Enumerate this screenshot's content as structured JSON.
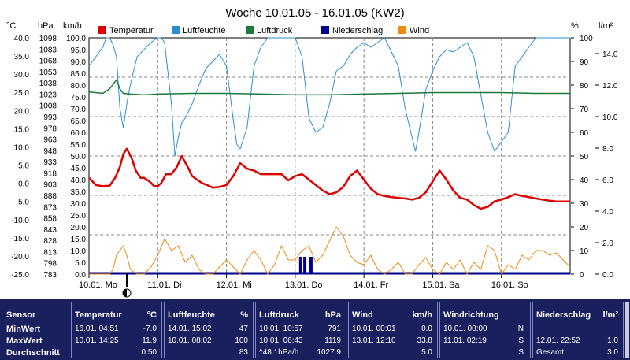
{
  "chart_data": {
    "type": "line",
    "title": "Woche 10.01.05 - 16.01.05 (KW2)",
    "legend_placement": "top",
    "grid": true,
    "x_ticks": [
      "10.01. Mo",
      "11.01. Di",
      "12.01. Mi",
      "13.01. Do",
      "14.01. Fr",
      "15.01. Sa",
      "16.01. So"
    ],
    "axes": {
      "temp": {
        "unit": "°C",
        "range": [
          -25,
          40
        ],
        "ticks": [
          "40.0",
          "35.0",
          "30.0",
          "25.0",
          "20.0",
          "15.0",
          "10.0",
          "5.0",
          "0.0",
          "-5.0",
          "-10.0",
          "-15.0",
          "-20.0",
          "-25.0"
        ]
      },
      "pressure": {
        "unit": "hPa",
        "range": [
          783,
          1098
        ],
        "ticks": [
          "1098",
          "1083",
          "1068",
          "1053",
          "1038",
          "1023",
          "1008",
          "993",
          "978",
          "963",
          "948",
          "933",
          "918",
          "903",
          "888",
          "873",
          "858",
          "843",
          "828",
          "813",
          "798",
          "783"
        ]
      },
      "wind": {
        "unit": "km/h",
        "range": [
          0,
          100
        ],
        "ticks": [
          "100.0",
          "95.0",
          "90.0",
          "85.0",
          "80.0",
          "75.0",
          "70.0",
          "65.0",
          "60.0",
          "55.0",
          "50.0",
          "45.0",
          "40.0",
          "35.0",
          "30.0",
          "25.0",
          "20.0",
          "15.0",
          "10.0",
          "5.0",
          "0.0"
        ]
      },
      "humidity": {
        "unit": "%",
        "range": [
          0,
          100
        ],
        "ticks": [
          "100",
          "90",
          "80",
          "70",
          "60",
          "50",
          "40",
          "30",
          "20",
          "10",
          "0"
        ]
      },
      "rain": {
        "unit": "l/m²",
        "range": [
          0,
          15
        ],
        "ticks": [
          "14.0",
          "12.0",
          "10.0",
          "8.0",
          "6.0",
          "4.0",
          "2.0",
          "0.0"
        ]
      }
    },
    "series": [
      {
        "name": "Temperatur",
        "color": "#dd0000",
        "axis": "temp",
        "x": [
          0,
          0.05,
          0.1,
          0.2,
          0.3,
          0.38,
          0.45,
          0.5,
          0.55,
          0.62,
          0.68,
          0.75,
          0.8,
          0.88,
          0.95,
          1.0,
          1.05,
          1.12,
          1.2,
          1.28,
          1.35,
          1.45,
          1.5,
          1.57,
          1.65,
          1.72,
          1.8,
          1.9,
          2.0,
          2.1,
          2.2,
          2.3,
          2.4,
          2.5,
          2.6,
          2.7,
          2.8,
          2.9,
          3.0,
          3.1,
          3.2,
          3.3,
          3.4,
          3.5,
          3.6,
          3.7,
          3.8,
          3.9,
          4.0,
          4.1,
          4.2,
          4.3,
          4.4,
          4.5,
          4.6,
          4.7,
          4.8,
          4.9,
          5.0,
          5.1,
          5.2,
          5.3,
          5.4,
          5.5,
          5.6,
          5.7,
          5.8,
          5.9,
          6.0,
          6.1,
          6.2,
          6.3,
          6.4,
          6.5,
          6.6,
          6.7,
          6.8,
          6.9,
          7.0
        ],
        "y": [
          1.5,
          0.5,
          -0.5,
          -0.8,
          -0.7,
          1.5,
          4.5,
          8.0,
          9.5,
          7.0,
          3.5,
          1.5,
          1.5,
          0.5,
          -0.8,
          -0.8,
          0.0,
          2.5,
          2.5,
          4.5,
          7.5,
          4.0,
          2.0,
          1.0,
          0.0,
          -0.5,
          -1.2,
          -1.0,
          -0.5,
          2.0,
          5.5,
          4.0,
          3.5,
          2.5,
          2.5,
          2.5,
          2.5,
          0.8,
          2.0,
          2.5,
          1.0,
          -0.5,
          -2.0,
          -3.0,
          -2.5,
          -1.0,
          2.0,
          3.5,
          1.0,
          -1.5,
          -3.0,
          -3.5,
          -3.8,
          -4.0,
          -4.2,
          -4.5,
          -4.0,
          -2.5,
          0.5,
          3.5,
          1.0,
          -2.0,
          -4.0,
          -4.5,
          -6.0,
          -7.0,
          -6.5,
          -5.0,
          -4.5,
          -3.8,
          -3.0,
          -3.5,
          -3.8,
          -4.2,
          -4.5,
          -4.8,
          -5.0,
          -5.0,
          -5.0
        ]
      },
      {
        "name": "Luftfeuchte",
        "color": "#2a8fd0",
        "axis": "humidity",
        "x": [
          0,
          0.1,
          0.2,
          0.25,
          0.3,
          0.35,
          0.4,
          0.45,
          0.5,
          0.55,
          0.6,
          0.7,
          0.8,
          0.9,
          1.0,
          1.05,
          1.1,
          1.2,
          1.25,
          1.3,
          1.35,
          1.4,
          1.5,
          1.6,
          1.7,
          1.8,
          1.9,
          2.0,
          2.1,
          2.15,
          2.2,
          2.3,
          2.4,
          2.5,
          2.6,
          2.7,
          2.75,
          2.8,
          2.9,
          3.0,
          3.1,
          3.2,
          3.3,
          3.4,
          3.5,
          3.6,
          3.7,
          3.8,
          3.9,
          4.0,
          4.1,
          4.2,
          4.3,
          4.4,
          4.5,
          4.6,
          4.7,
          4.75,
          4.8,
          4.9,
          5.0,
          5.1,
          5.2,
          5.3,
          5.4,
          5.5,
          5.6,
          5.7,
          5.8,
          5.9,
          6.0,
          6.1,
          6.2,
          6.3,
          6.4,
          6.5,
          6.6,
          6.7,
          6.8,
          6.9,
          7.0
        ],
        "y": [
          88,
          92,
          96,
          100,
          100,
          97,
          92,
          70,
          62,
          72,
          80,
          92,
          95,
          98,
          100,
          100,
          98,
          72,
          50,
          58,
          64,
          66,
          72,
          80,
          87,
          90,
          93,
          88,
          65,
          55,
          53,
          62,
          88,
          96,
          100,
          100,
          100,
          100,
          100,
          100,
          92,
          66,
          60,
          62,
          72,
          86,
          88,
          93,
          96,
          98,
          96,
          98,
          100,
          94,
          88,
          70,
          58,
          52,
          60,
          78,
          86,
          92,
          95,
          94,
          96,
          98,
          92,
          76,
          60,
          52,
          56,
          60,
          88,
          92,
          96,
          100,
          100,
          100,
          100,
          100,
          100
        ]
      },
      {
        "name": "Luftdruck",
        "color": "#1a7a3a",
        "axis": "pressure",
        "x": [
          0,
          0.2,
          0.3,
          0.4,
          0.45,
          0.5,
          0.6,
          0.8,
          1.0,
          1.5,
          2.0,
          2.5,
          3.0,
          3.5,
          4.0,
          4.5,
          5.0,
          5.5,
          6.0,
          6.5,
          7.0
        ],
        "y": [
          1026,
          1024,
          1030,
          1042,
          1030,
          1024,
          1023,
          1022,
          1023,
          1024,
          1024,
          1023,
          1022,
          1022,
          1023,
          1024,
          1025,
          1025,
          1025,
          1024,
          1024
        ]
      },
      {
        "name": "Niederschlag",
        "color": "#00008b",
        "axis": "rain",
        "x": [
          3.08,
          3.14,
          3.23
        ],
        "y": [
          1.0,
          1.0,
          1.0
        ]
      },
      {
        "name": "Wind",
        "color": "#f08a10",
        "axis": "wind",
        "x": [
          0,
          0.1,
          0.2,
          0.3,
          0.35,
          0.4,
          0.5,
          0.55,
          0.6,
          0.7,
          0.8,
          0.9,
          1.0,
          1.1,
          1.2,
          1.3,
          1.4,
          1.5,
          1.6,
          1.7,
          1.8,
          1.9,
          2.0,
          2.1,
          2.2,
          2.3,
          2.4,
          2.5,
          2.6,
          2.7,
          2.8,
          2.9,
          3.0,
          3.1,
          3.2,
          3.3,
          3.4,
          3.5,
          3.6,
          3.7,
          3.8,
          3.9,
          4.0,
          4.1,
          4.2,
          4.3,
          4.4,
          4.5,
          4.6,
          4.7,
          4.8,
          4.9,
          5.0,
          5.1,
          5.2,
          5.3,
          5.4,
          5.5,
          5.6,
          5.7,
          5.8,
          5.9,
          6.0,
          6.1,
          6.2,
          6.3,
          6.4,
          6.5,
          6.6,
          6.7,
          6.8,
          6.9,
          7.0
        ],
        "y": [
          0,
          0,
          0,
          0,
          2,
          8,
          12,
          8,
          2,
          0,
          0,
          3,
          8,
          15,
          10,
          12,
          5,
          8,
          2,
          0,
          0,
          3,
          6,
          3,
          0,
          6,
          10,
          6,
          0,
          4,
          12,
          6,
          6,
          10,
          12,
          5,
          8,
          14,
          20,
          16,
          8,
          5,
          4,
          8,
          2,
          0,
          2,
          5,
          0,
          0,
          4,
          7,
          2,
          0,
          5,
          2,
          6,
          0,
          5,
          2,
          12,
          10,
          0,
          4,
          2,
          8,
          6,
          10,
          10,
          8,
          9,
          6,
          3
        ]
      }
    ]
  },
  "table": {
    "sensor": {
      "header": "Sensor",
      "min": "MinWert",
      "max": "MaxWert",
      "avg": "Durchschnitt"
    },
    "temperature": {
      "header": "Temperatur",
      "unit": "°C",
      "min_time": "16.01.  04:51",
      "min_val": "-7.0",
      "max_time": "10.01.  14:25",
      "max_val": "11.9",
      "avg": "0.50"
    },
    "humidity": {
      "header": "Luftfeuchte",
      "unit": "%",
      "min_time": "14.01.  15:02",
      "min_val": "47",
      "max_time": "10.01.  08:02",
      "max_val": "100",
      "avg": "83"
    },
    "pressure": {
      "header": "Luftdruck",
      "unit": "hPa",
      "min_time": "10.01.  10:57",
      "min_val": "791",
      "max_time": "10.01.  06:43",
      "max_val": "1119",
      "avg_label": "^48.1hPa/h",
      "avg": "1027.9"
    },
    "wind": {
      "header": "Wind",
      "unit": "km/h",
      "min_time": "10.01.  00:01",
      "min_val": "0.0",
      "max_time": "13.01.  12:10",
      "max_val": "33.8",
      "avg": "5.0"
    },
    "direction": {
      "header": "Windrichtung",
      "min_time": "10.01.  00:00",
      "min_val": "N",
      "max_time": "11.01.  02:19",
      "max_val": "S",
      "avg": "S"
    },
    "rain": {
      "header": "Niederschlag",
      "unit": "l/m²",
      "max_time": "12.01.  22:52",
      "max_val": "1.0",
      "total_label": "Gesamt:",
      "total": "3.0"
    }
  }
}
